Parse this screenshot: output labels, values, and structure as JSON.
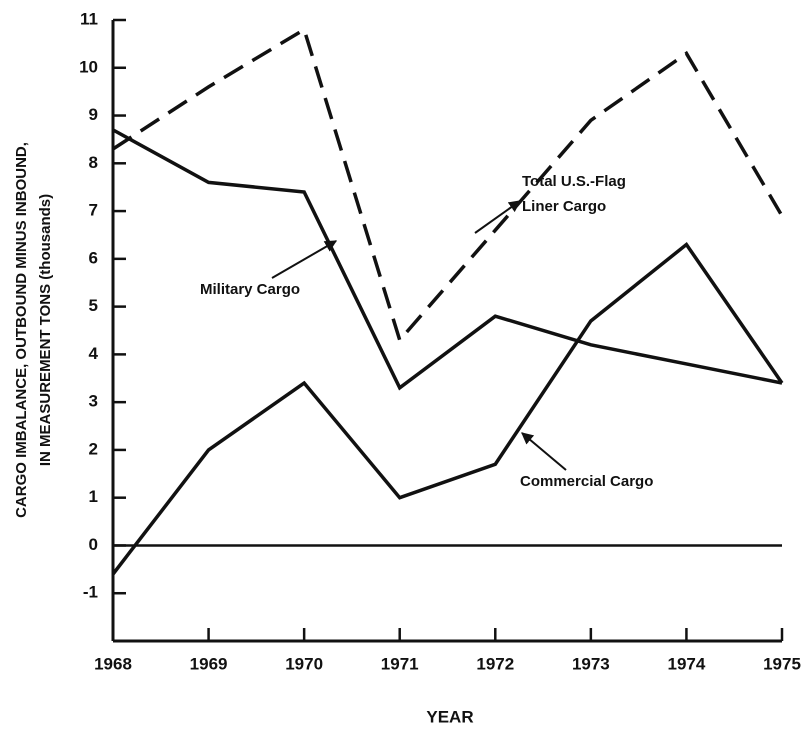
{
  "chart_data": {
    "type": "line",
    "y_label": [
      "CARGO IMBALANCE, OUTBOUND MINUS INBOUND,",
      "IN MEASUREMENT TONS (thousands)"
    ],
    "x_label": "YEAR",
    "x": [
      1968,
      1969,
      1970,
      1971,
      1972,
      1973,
      1974,
      1975
    ],
    "xlim": [
      1968,
      1975
    ],
    "xticks": [
      1968,
      1969,
      1970,
      1971,
      1972,
      1973,
      1974,
      1975
    ],
    "ylim": [
      -2,
      11
    ],
    "yticks": [
      -1,
      0,
      1,
      2,
      3,
      4,
      5,
      6,
      7,
      8,
      9,
      10,
      11
    ],
    "series": [
      {
        "color": "#111111",
        "style": "dashed",
        "values": [
          8.3,
          9.6,
          10.8,
          4.3,
          6.6,
          8.9,
          10.3,
          6.9
        ]
      },
      {
        "color": "#111111",
        "style": "solid",
        "values": [
          8.7,
          7.6,
          7.4,
          3.3,
          4.8,
          4.2,
          3.8,
          3.4
        ]
      },
      {
        "color": "#111111",
        "style": "solid",
        "values": [
          -0.6,
          2.0,
          3.4,
          1.0,
          1.7,
          4.7,
          6.3,
          3.4
        ]
      }
    ],
    "annotations": [
      "Total U.S.-Flag",
      "Liner Cargo",
      "Military Cargo",
      "Commercial Cargo"
    ]
  }
}
